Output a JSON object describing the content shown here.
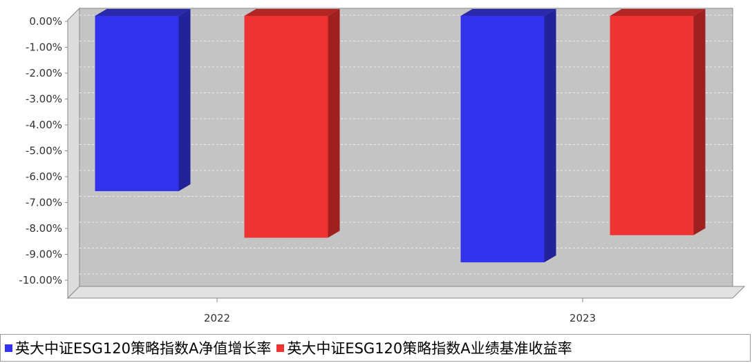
{
  "chart_data": {
    "type": "bar",
    "categories": [
      "2022",
      "2023"
    ],
    "series": [
      {
        "name": "英大中证ESG120策略指数A净值增长率",
        "values": [
          -6.8,
          -9.55
        ],
        "color": "#3333ee",
        "side_color": "#222299",
        "top_color": "#2a2aaa"
      },
      {
        "name": "英大中证ESG120策略指数A业绩基准收益率",
        "values": [
          -8.6,
          -8.5
        ],
        "color": "#ee3333",
        "side_color": "#a02020",
        "top_color": "#b52525"
      }
    ],
    "ylim": [
      -11,
      0
    ],
    "yticks": [
      0,
      -1,
      -2,
      -3,
      -4,
      -5,
      -6,
      -7,
      -8,
      -9,
      -10
    ],
    "ytick_labels": [
      "0.00%",
      "-1.00%",
      "-2.00%",
      "-3.00%",
      "-4.00%",
      "-5.00%",
      "-6.00%",
      "-7.00%",
      "-8.00%",
      "-9.00%",
      "-10.00%"
    ],
    "grid": true,
    "legend_position": "bottom",
    "title": "",
    "xlabel": "",
    "ylabel": ""
  }
}
